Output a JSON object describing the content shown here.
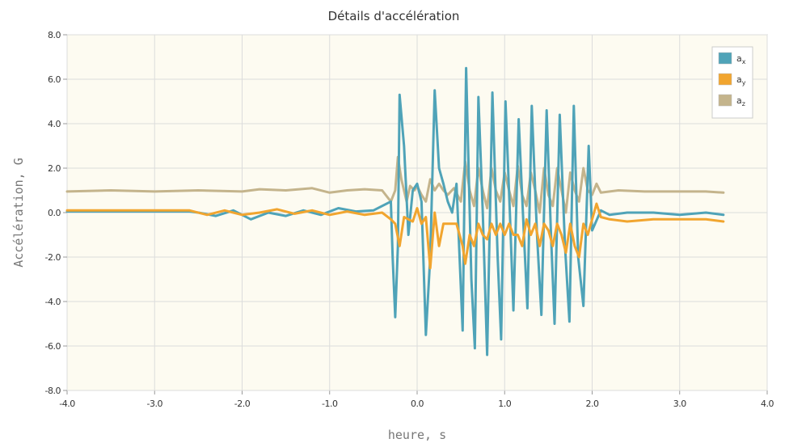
{
  "chart_data": {
    "type": "line",
    "title": "Détails d'accélération",
    "xlabel": "heure, s",
    "ylabel": "Accélération, G",
    "xlim": [
      -4.0,
      4.0
    ],
    "ylim": [
      -8.0,
      8.0
    ],
    "x_ticks": [
      "-4.0",
      "-3.0",
      "-2.0",
      "-1.0",
      "0.0",
      "1.0",
      "2.0",
      "3.0",
      "4.0"
    ],
    "y_ticks": [
      "8.0",
      "6.0",
      "4.0",
      "2.0",
      "0.0",
      "-2.0",
      "-4.0",
      "-6.0",
      "-8.0"
    ],
    "grid": true,
    "legend_position": "top-right",
    "plot_background": "#fdfbf1",
    "series": [
      {
        "name": "a",
        "subscript": "x",
        "color": "#4fa3b8",
        "points": [
          [
            -4.0,
            0.05
          ],
          [
            -3.5,
            0.05
          ],
          [
            -3.0,
            0.05
          ],
          [
            -2.6,
            0.05
          ],
          [
            -2.5,
            0.0
          ],
          [
            -2.3,
            -0.15
          ],
          [
            -2.1,
            0.1
          ],
          [
            -1.9,
            -0.3
          ],
          [
            -1.7,
            0.0
          ],
          [
            -1.5,
            -0.15
          ],
          [
            -1.3,
            0.1
          ],
          [
            -1.1,
            -0.1
          ],
          [
            -0.9,
            0.2
          ],
          [
            -0.7,
            0.05
          ],
          [
            -0.5,
            0.1
          ],
          [
            -0.3,
            0.5
          ],
          [
            -0.28,
            -2.0
          ],
          [
            -0.25,
            -4.7
          ],
          [
            -0.22,
            -1.5
          ],
          [
            -0.2,
            5.3
          ],
          [
            -0.15,
            3.0
          ],
          [
            -0.1,
            -1.0
          ],
          [
            -0.05,
            1.0
          ],
          [
            0.0,
            1.3
          ],
          [
            0.05,
            0.5
          ],
          [
            0.1,
            -5.5
          ],
          [
            0.15,
            -2.0
          ],
          [
            0.2,
            5.5
          ],
          [
            0.25,
            2.0
          ],
          [
            0.3,
            1.3
          ],
          [
            0.35,
            0.5
          ],
          [
            0.4,
            0.0
          ],
          [
            0.45,
            1.3
          ],
          [
            0.52,
            -5.3
          ],
          [
            0.56,
            6.5
          ],
          [
            0.62,
            -3.0
          ],
          [
            0.66,
            -6.1
          ],
          [
            0.7,
            5.2
          ],
          [
            0.75,
            0.0
          ],
          [
            0.8,
            -6.4
          ],
          [
            0.86,
            5.4
          ],
          [
            0.92,
            -2.0
          ],
          [
            0.96,
            -5.7
          ],
          [
            1.01,
            5.0
          ],
          [
            1.06,
            0.0
          ],
          [
            1.1,
            -4.4
          ],
          [
            1.16,
            4.2
          ],
          [
            1.22,
            -1.0
          ],
          [
            1.26,
            -4.3
          ],
          [
            1.31,
            4.8
          ],
          [
            1.37,
            -1.0
          ],
          [
            1.42,
            -4.6
          ],
          [
            1.48,
            4.6
          ],
          [
            1.53,
            -1.0
          ],
          [
            1.57,
            -5.0
          ],
          [
            1.63,
            4.4
          ],
          [
            1.69,
            -1.5
          ],
          [
            1.74,
            -4.9
          ],
          [
            1.79,
            4.8
          ],
          [
            1.84,
            -2.0
          ],
          [
            1.9,
            -4.2
          ],
          [
            1.96,
            3.0
          ],
          [
            2.0,
            -0.8
          ],
          [
            2.1,
            0.1
          ],
          [
            2.2,
            -0.1
          ],
          [
            2.4,
            0.0
          ],
          [
            2.7,
            0.0
          ],
          [
            3.0,
            -0.1
          ],
          [
            3.3,
            0.0
          ],
          [
            3.5,
            -0.1
          ]
        ]
      },
      {
        "name": "a",
        "subscript": "y",
        "color": "#f1a52f",
        "points": [
          [
            -4.0,
            0.1
          ],
          [
            -3.5,
            0.1
          ],
          [
            -3.0,
            0.1
          ],
          [
            -2.6,
            0.1
          ],
          [
            -2.4,
            -0.1
          ],
          [
            -2.2,
            0.1
          ],
          [
            -2.0,
            -0.1
          ],
          [
            -1.8,
            0.0
          ],
          [
            -1.6,
            0.15
          ],
          [
            -1.4,
            -0.05
          ],
          [
            -1.2,
            0.1
          ],
          [
            -1.0,
            -0.1
          ],
          [
            -0.8,
            0.05
          ],
          [
            -0.6,
            -0.1
          ],
          [
            -0.4,
            0.0
          ],
          [
            -0.3,
            -0.3
          ],
          [
            -0.25,
            -0.5
          ],
          [
            -0.2,
            -1.5
          ],
          [
            -0.15,
            -0.2
          ],
          [
            -0.1,
            -0.3
          ],
          [
            -0.05,
            -0.4
          ],
          [
            0.0,
            0.2
          ],
          [
            0.05,
            -0.5
          ],
          [
            0.1,
            -0.2
          ],
          [
            0.15,
            -2.5
          ],
          [
            0.2,
            0.0
          ],
          [
            0.25,
            -1.5
          ],
          [
            0.3,
            -0.5
          ],
          [
            0.35,
            -0.5
          ],
          [
            0.45,
            -0.5
          ],
          [
            0.52,
            -1.5
          ],
          [
            0.55,
            -2.3
          ],
          [
            0.6,
            -1.0
          ],
          [
            0.65,
            -1.5
          ],
          [
            0.7,
            -0.5
          ],
          [
            0.75,
            -1.0
          ],
          [
            0.8,
            -1.2
          ],
          [
            0.85,
            -0.5
          ],
          [
            0.9,
            -1.0
          ],
          [
            0.95,
            -0.5
          ],
          [
            1.0,
            -1.0
          ],
          [
            1.05,
            -0.5
          ],
          [
            1.1,
            -1.0
          ],
          [
            1.15,
            -1.0
          ],
          [
            1.2,
            -1.5
          ],
          [
            1.25,
            -0.3
          ],
          [
            1.3,
            -1.0
          ],
          [
            1.35,
            -0.5
          ],
          [
            1.4,
            -1.5
          ],
          [
            1.45,
            -0.5
          ],
          [
            1.5,
            -0.8
          ],
          [
            1.55,
            -1.5
          ],
          [
            1.6,
            -0.5
          ],
          [
            1.65,
            -1.0
          ],
          [
            1.7,
            -1.8
          ],
          [
            1.75,
            -0.5
          ],
          [
            1.8,
            -1.5
          ],
          [
            1.85,
            -2.0
          ],
          [
            1.9,
            -0.5
          ],
          [
            1.95,
            -1.0
          ],
          [
            2.0,
            -0.3
          ],
          [
            2.05,
            0.4
          ],
          [
            2.1,
            -0.2
          ],
          [
            2.2,
            -0.3
          ],
          [
            2.4,
            -0.4
          ],
          [
            2.7,
            -0.3
          ],
          [
            3.0,
            -0.3
          ],
          [
            3.3,
            -0.3
          ],
          [
            3.5,
            -0.4
          ]
        ]
      },
      {
        "name": "a",
        "subscript": "z",
        "color": "#c4b48c",
        "points": [
          [
            -4.0,
            0.95
          ],
          [
            -3.5,
            1.0
          ],
          [
            -3.0,
            0.95
          ],
          [
            -2.5,
            1.0
          ],
          [
            -2.0,
            0.95
          ],
          [
            -1.8,
            1.05
          ],
          [
            -1.5,
            1.0
          ],
          [
            -1.2,
            1.1
          ],
          [
            -1.0,
            0.9
          ],
          [
            -0.8,
            1.0
          ],
          [
            -0.6,
            1.05
          ],
          [
            -0.4,
            1.0
          ],
          [
            -0.3,
            0.5
          ],
          [
            -0.25,
            1.0
          ],
          [
            -0.22,
            2.5
          ],
          [
            -0.18,
            1.5
          ],
          [
            -0.12,
            0.5
          ],
          [
            -0.08,
            1.2
          ],
          [
            -0.03,
            1.0
          ],
          [
            0.0,
            1.2
          ],
          [
            0.05,
            0.8
          ],
          [
            0.1,
            0.5
          ],
          [
            0.15,
            1.5
          ],
          [
            0.2,
            1.0
          ],
          [
            0.25,
            1.3
          ],
          [
            0.3,
            1.0
          ],
          [
            0.35,
            0.8
          ],
          [
            0.42,
            1.1
          ],
          [
            0.5,
            0.5
          ],
          [
            0.55,
            2.3
          ],
          [
            0.6,
            1.0
          ],
          [
            0.65,
            0.3
          ],
          [
            0.7,
            2.0
          ],
          [
            0.75,
            1.0
          ],
          [
            0.8,
            0.2
          ],
          [
            0.85,
            2.0
          ],
          [
            0.9,
            1.0
          ],
          [
            0.95,
            0.5
          ],
          [
            1.0,
            1.8
          ],
          [
            1.05,
            1.0
          ],
          [
            1.1,
            0.3
          ],
          [
            1.15,
            2.1
          ],
          [
            1.2,
            0.8
          ],
          [
            1.25,
            0.3
          ],
          [
            1.3,
            1.8
          ],
          [
            1.35,
            1.0
          ],
          [
            1.4,
            0.0
          ],
          [
            1.45,
            2.0
          ],
          [
            1.5,
            0.8
          ],
          [
            1.55,
            0.3
          ],
          [
            1.6,
            2.0
          ],
          [
            1.65,
            1.0
          ],
          [
            1.7,
            0.0
          ],
          [
            1.75,
            1.8
          ],
          [
            1.8,
            1.0
          ],
          [
            1.85,
            0.5
          ],
          [
            1.9,
            2.0
          ],
          [
            1.95,
            1.0
          ],
          [
            2.0,
            0.8
          ],
          [
            2.05,
            1.3
          ],
          [
            2.1,
            0.9
          ],
          [
            2.3,
            1.0
          ],
          [
            2.6,
            0.95
          ],
          [
            3.0,
            0.95
          ],
          [
            3.3,
            0.95
          ],
          [
            3.5,
            0.9
          ]
        ]
      }
    ]
  }
}
